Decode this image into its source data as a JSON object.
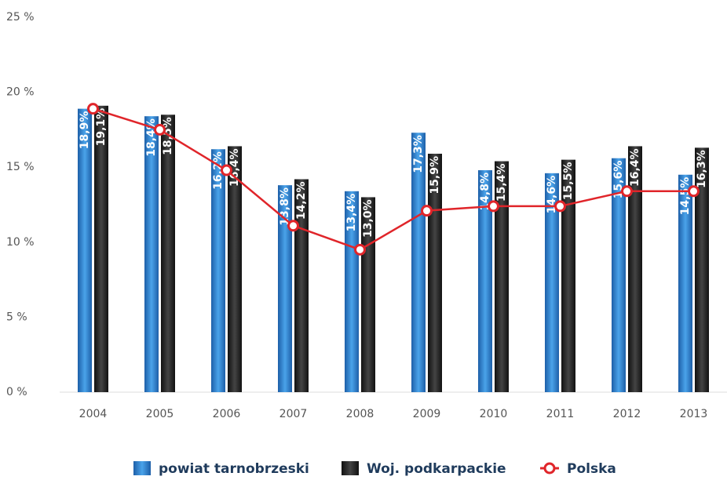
{
  "chart_data": {
    "type": "bar",
    "categories": [
      "2004",
      "2005",
      "2006",
      "2007",
      "2008",
      "2009",
      "2010",
      "2011",
      "2012",
      "2013"
    ],
    "series": [
      {
        "name": "powiat tarnobrzeski",
        "type": "bar",
        "color": "#3a8fd6",
        "values": [
          18.9,
          18.4,
          16.2,
          13.8,
          13.4,
          17.3,
          14.8,
          14.6,
          15.6,
          14.5
        ],
        "value_labels": [
          "18,9%",
          "18,4%",
          "16,2%",
          "13,8%",
          "13,4%",
          "17,3%",
          "14,8%",
          "14,6%",
          "15,6%",
          "14,5%"
        ]
      },
      {
        "name": "Woj. podkarpackie",
        "type": "bar",
        "color": "#2b2b2b",
        "values": [
          19.1,
          18.5,
          16.4,
          14.2,
          13.0,
          15.9,
          15.4,
          15.5,
          16.4,
          16.3
        ],
        "value_labels": [
          "19,1%",
          "18,5%",
          "16,4%",
          "14,2%",
          "13,0%",
          "15,9%",
          "15,4%",
          "15,5%",
          "16,4%",
          "16,3%"
        ]
      },
      {
        "name": "Polska",
        "type": "line",
        "color": "#e0252a",
        "values": [
          18.9,
          17.5,
          14.8,
          11.1,
          9.5,
          12.1,
          12.4,
          12.4,
          13.4,
          13.4
        ]
      }
    ],
    "ylim": [
      0,
      25
    ],
    "yticks": [
      {
        "value": 0,
        "label": "0 %"
      },
      {
        "value": 5,
        "label": "5 %"
      },
      {
        "value": 10,
        "label": "10 %"
      },
      {
        "value": 15,
        "label": "15 %"
      },
      {
        "value": 20,
        "label": "20 %"
      },
      {
        "value": 25,
        "label": "25 %"
      }
    ],
    "grid": false
  }
}
